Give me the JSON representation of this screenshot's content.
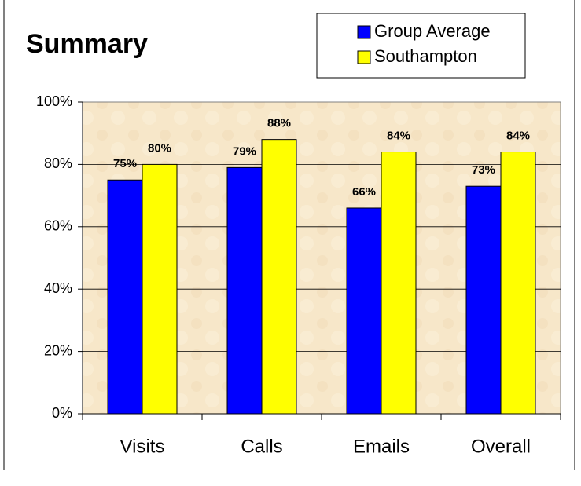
{
  "chart_data": {
    "type": "bar",
    "title": "Summary",
    "categories": [
      "Visits",
      "Calls",
      "Emails",
      "Overall"
    ],
    "series": [
      {
        "name": "Group Average",
        "color": "#0000ff",
        "values": [
          75,
          79,
          66,
          73
        ],
        "value_labels": [
          "75%",
          "79%",
          "66%",
          "73%"
        ]
      },
      {
        "name": "Southampton",
        "color": "#ffff00",
        "values": [
          80,
          88,
          84,
          84
        ],
        "value_labels": [
          "80%",
          "88%",
          "84%",
          "84%"
        ]
      }
    ],
    "ylim": [
      0,
      100
    ],
    "yticks": [
      {
        "value": 0,
        "label": "0%"
      },
      {
        "value": 20,
        "label": "20%"
      },
      {
        "value": 40,
        "label": "40%"
      },
      {
        "value": 60,
        "label": "60%"
      },
      {
        "value": 80,
        "label": "80%"
      },
      {
        "value": 100,
        "label": "100%"
      }
    ],
    "grid": true,
    "legend": "top-right"
  }
}
